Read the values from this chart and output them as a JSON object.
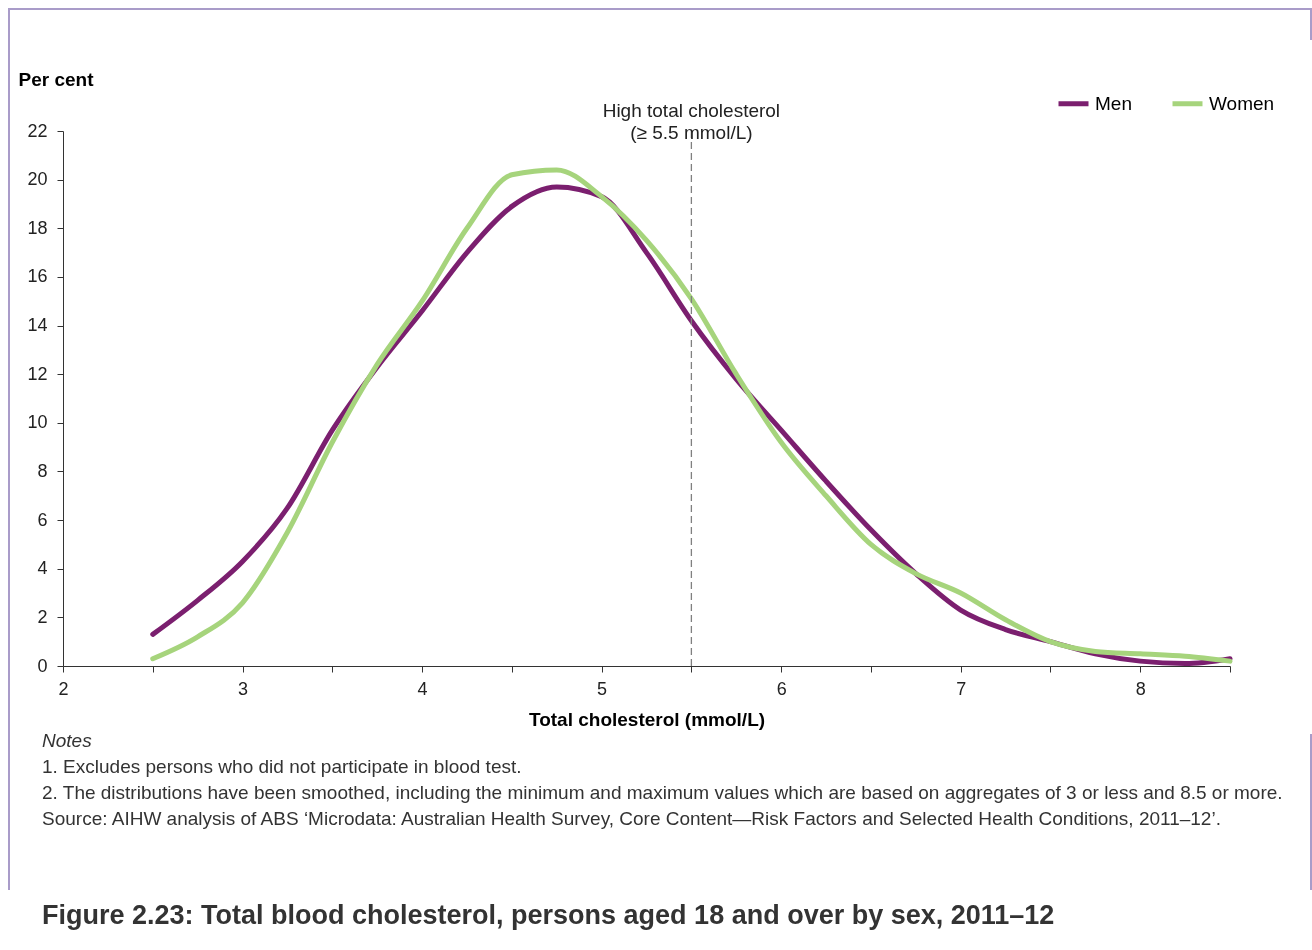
{
  "chart_data": {
    "type": "line",
    "title": "Figure 2.23: Total blood cholesterol, persons aged 18 and over by sex, 2011–12",
    "xlabel": "Total cholesterol (mmol/L)",
    "ylabel": "Per cent",
    "x": [
      2.5,
      2.75,
      3,
      3.25,
      3.5,
      3.75,
      4,
      4.25,
      4.5,
      4.75,
      5,
      5.25,
      5.5,
      5.75,
      6,
      6.25,
      6.5,
      6.75,
      7,
      7.25,
      7.5,
      7.75,
      8,
      8.25,
      8.5
    ],
    "series": [
      {
        "name": "Men",
        "color": "#7b1f6f",
        "values": [
          1.3,
          2.7,
          4.3,
          6.5,
          9.7,
          12.3,
          14.6,
          17,
          18.9,
          19.7,
          19.3,
          17,
          14.2,
          11.8,
          9.7,
          7.6,
          5.6,
          3.8,
          2.3,
          1.5,
          1,
          0.5,
          0.2,
          0.1,
          0.3
        ]
      },
      {
        "name": "Women",
        "color": "#a6d47c",
        "values": [
          0.3,
          1.2,
          2.6,
          5.5,
          9.2,
          12.4,
          15,
          18,
          20.2,
          20.4,
          19.3,
          17.5,
          15.1,
          12,
          9.2,
          7,
          5,
          3.8,
          3,
          1.9,
          1,
          0.6,
          0.5,
          0.4,
          0.2
        ]
      }
    ],
    "xlim": [
      2,
      8.5
    ],
    "xticks": [
      2,
      {
        "value": 2.5,
        "label": null
      },
      3,
      {
        "value": 3.5,
        "label": null
      },
      4,
      {
        "value": 4.5,
        "label": null
      },
      5,
      {
        "value": 5.5,
        "label": null
      },
      6,
      {
        "value": 6.5,
        "label": null
      },
      7,
      {
        "value": 7.5,
        "label": null
      },
      8,
      {
        "value": 8.5,
        "label": null
      }
    ],
    "ylim": [
      0,
      22
    ],
    "yticks": [
      0,
      2,
      4,
      6,
      8,
      10,
      12,
      14,
      16,
      18,
      20,
      22
    ],
    "grid": false,
    "legend": "top right",
    "marker": "none",
    "line_style": "solid",
    "ref_lines": [
      {
        "axis": "x",
        "value": 5.5,
        "label": "High total cholesterol\n(≥ 5.5 mmol/L)",
        "color": "#808080",
        "line_style": "dashed"
      }
    ],
    "annotations": [
      "Notes",
      "1.  Excludes persons who did not participate in blood test.",
      "2.  The distributions have been smoothed, including the minimum and maximum values which are based on aggregates of 3 or less and 8.5 or more.",
      "Source: AIHW analysis of ABS ‘Microdata: Australian Health Survey, Core Content—Risk Factors and Selected Health Conditions, 2011–12’."
    ]
  }
}
